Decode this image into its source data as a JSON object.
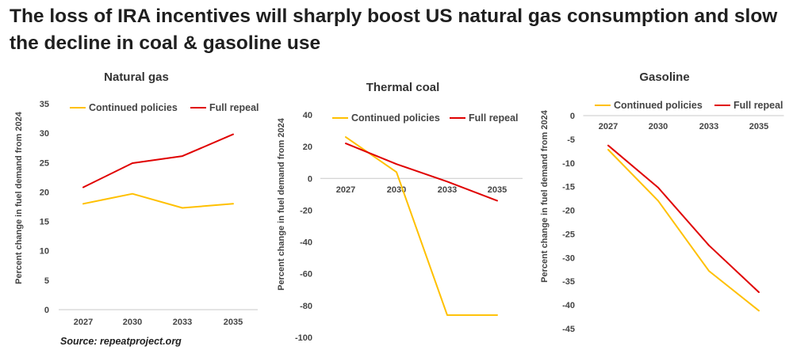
{
  "title": "The loss of IRA incentives will sharply boost US natural gas consumption and slow the decline in coal & gasoline use",
  "source": "Source: repeatproject.org",
  "colors": {
    "continued": "#FFC000",
    "repeal": "#E00000",
    "axis": "#c8c8c8"
  },
  "chart_data": [
    {
      "type": "line",
      "title": "Natural gas",
      "categories": [
        "2027",
        "2030",
        "2033",
        "2035"
      ],
      "ylabel": "Percent change in fuel demand from 2024",
      "xlabel": "",
      "ylim": [
        0,
        35
      ],
      "yticks": [
        0,
        5,
        10,
        15,
        20,
        25,
        30,
        35
      ],
      "legend_position": "top",
      "series": [
        {
          "name": "Continued policies",
          "values": [
            18.0,
            19.7,
            17.3,
            18.0
          ]
        },
        {
          "name": "Full repeal",
          "values": [
            20.8,
            24.9,
            26.1,
            29.8
          ]
        }
      ]
    },
    {
      "type": "line",
      "title": "Thermal coal",
      "categories": [
        "2027",
        "2030",
        "2033",
        "2035"
      ],
      "ylabel": "Percent change in fuel demand from 2024",
      "xlabel": "",
      "ylim": [
        -100,
        40
      ],
      "yticks": [
        40,
        20,
        0,
        -20,
        -40,
        -60,
        -80,
        -100
      ],
      "legend_position": "top",
      "series": [
        {
          "name": "Continued policies",
          "values": [
            26,
            4,
            -86,
            -86
          ]
        },
        {
          "name": "Full repeal",
          "values": [
            22,
            9,
            -2,
            -14
          ]
        }
      ]
    },
    {
      "type": "line",
      "title": "Gasoline",
      "categories": [
        "2027",
        "2030",
        "2033",
        "2035"
      ],
      "ylabel": "Percent change in fuel demand from 2024",
      "xlabel": "",
      "ylim": [
        -45,
        0
      ],
      "yticks": [
        0,
        -5,
        -10,
        -15,
        -20,
        -25,
        -30,
        -35,
        -40,
        -45
      ],
      "legend_position": "top",
      "series": [
        {
          "name": "Continued policies",
          "values": [
            -7.2,
            -18.0,
            -32.8,
            -41.2
          ]
        },
        {
          "name": "Full repeal",
          "values": [
            -6.3,
            -15.2,
            -27.4,
            -37.3
          ]
        }
      ]
    }
  ]
}
